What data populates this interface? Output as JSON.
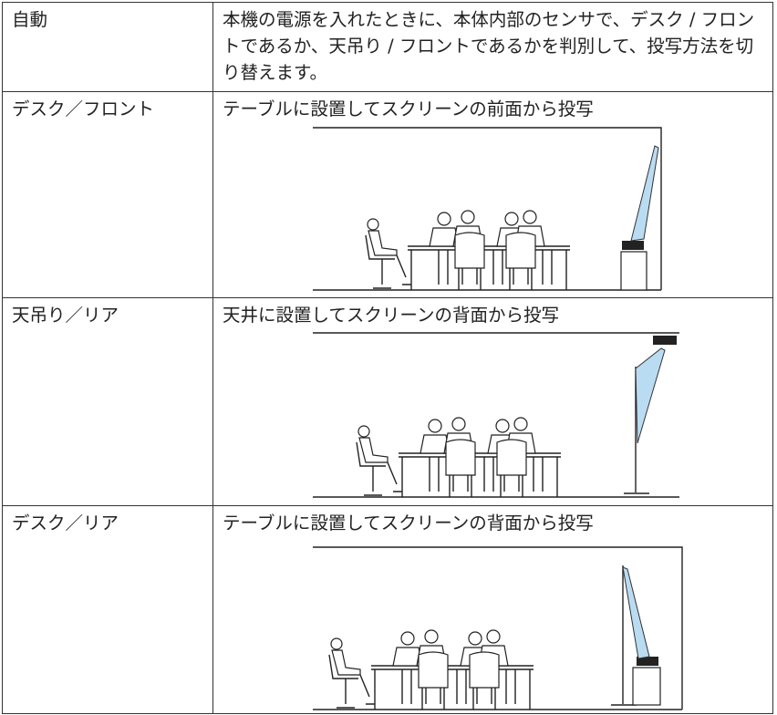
{
  "table": {
    "rows": [
      [
        "自動",
        "本機の電源を入れたときに、本体内部のセンサで、デスク / フロントであるか、天吊り / フロントであるかを判別して、投写方法を切り替えます。"
      ],
      [
        "デスク／フロント",
        "テーブルに設置してスクリーンの前面から投写"
      ],
      [
        "天吊り／リア",
        "天井に設置してスクリーンの背面から投写"
      ],
      [
        "デスク／リア",
        "テーブルに設置してスクリーンの背面から投写"
      ]
    ]
  }
}
